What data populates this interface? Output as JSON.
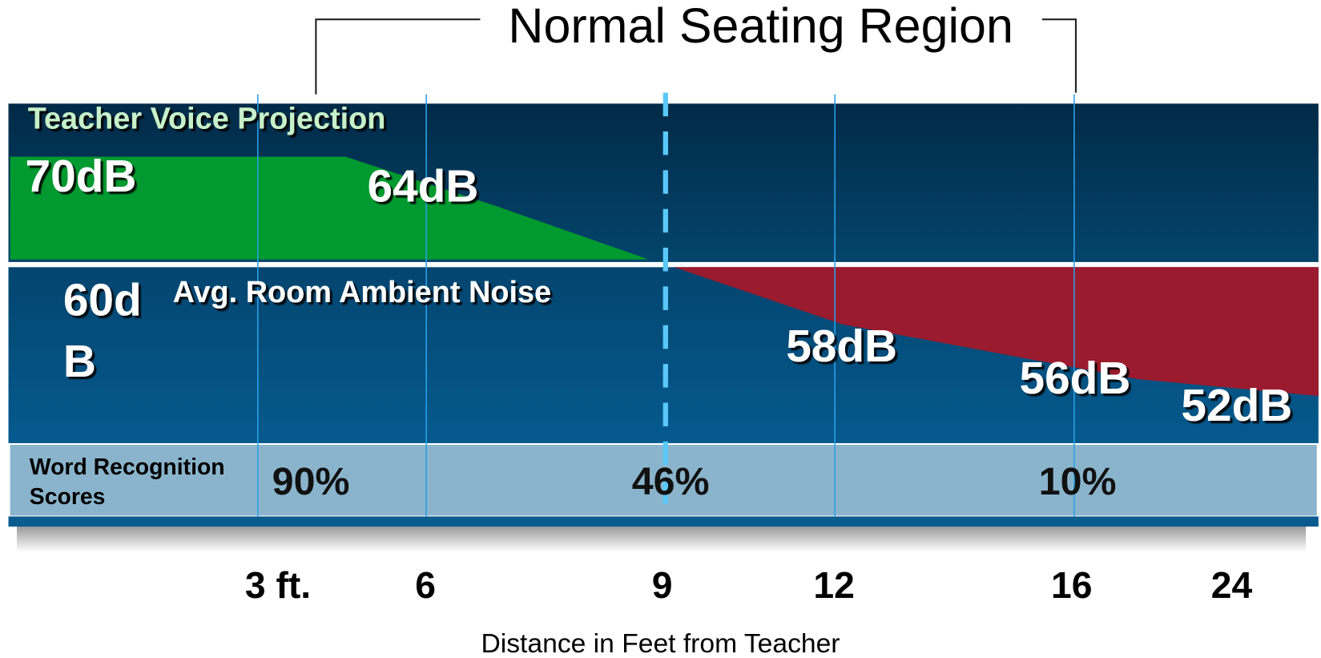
{
  "title": "Normal Seating Region",
  "voice": {
    "label": "Teacher Voice Projection",
    "levels": [
      "70dB",
      "64dB"
    ]
  },
  "noise": {
    "label": "Avg. Room Ambient Noise",
    "level_lines": [
      "60d",
      "B"
    ],
    "levels": [
      "58dB",
      "56dB",
      "52dB"
    ]
  },
  "word_recognition": {
    "label_lines": [
      "Word Recognition",
      "Scores"
    ],
    "scores": [
      "90%",
      "46%",
      "10%"
    ]
  },
  "distances": [
    "3 ft.",
    "6",
    "9",
    "12",
    "16",
    "24"
  ],
  "x_axis_label": "Distance in Feet from Teacher"
}
